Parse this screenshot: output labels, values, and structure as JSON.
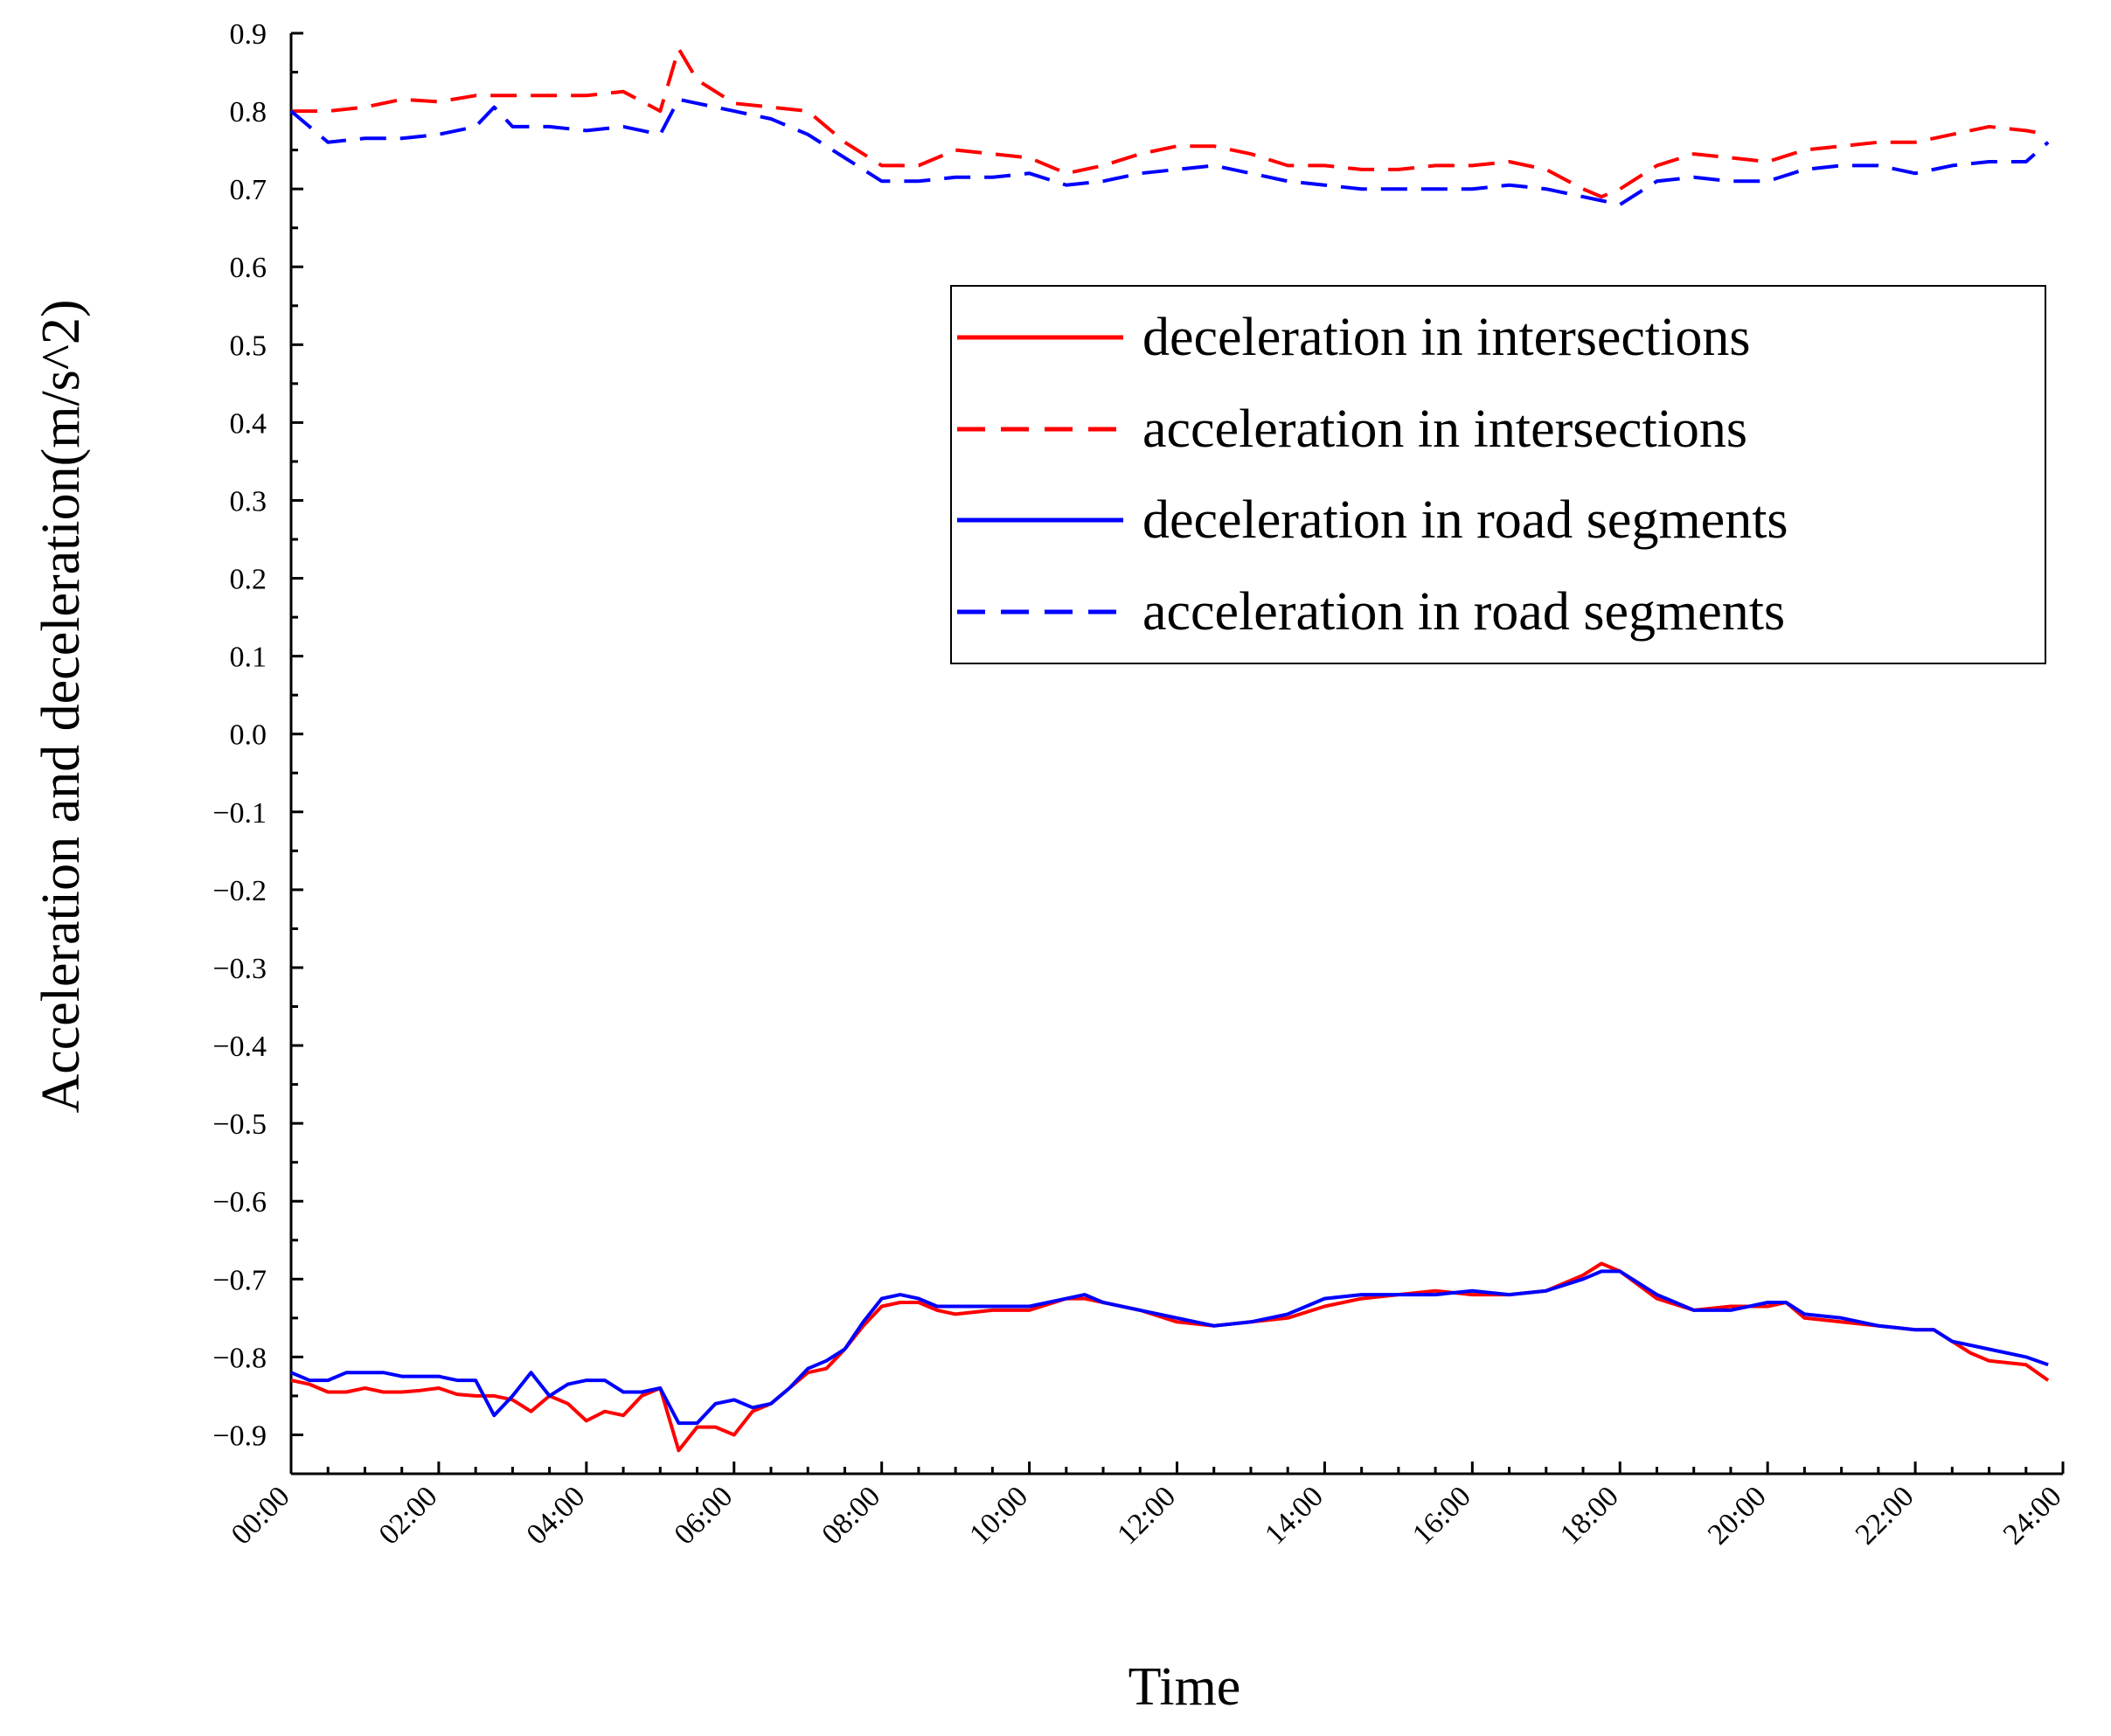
{
  "chart_data": {
    "type": "line",
    "title": "",
    "xlabel": "Time",
    "ylabel": "Acceleration and deceleration(m/s^2)",
    "xlim": [
      0,
      24
    ],
    "ylim": [
      -0.95,
      0.9
    ],
    "x_tick_labels": [
      "00:00",
      "02:00",
      "04:00",
      "06:00",
      "08:00",
      "10:00",
      "12:00",
      "14:00",
      "16:00",
      "18:00",
      "20:00",
      "22:00",
      "24:00"
    ],
    "y_ticks": [
      0.9,
      0.8,
      0.7,
      0.6,
      0.5,
      0.4,
      0.3,
      0.2,
      0.1,
      0.0,
      -0.1,
      -0.2,
      -0.3,
      -0.4,
      -0.5,
      -0.6,
      -0.7,
      -0.8,
      -0.9
    ],
    "y_tick_labels": [
      "0.9",
      "0.8",
      "0.7",
      "0.6",
      "0.5",
      "0.4",
      "0.3",
      "0.2",
      "0.1",
      "0.0",
      "−0.1",
      "−0.2",
      "−0.3",
      "−0.4",
      "−0.5",
      "−0.6",
      "−0.7",
      "−0.8",
      "−0.9"
    ],
    "legend_position": "upper-right",
    "series": [
      {
        "name": "deceleration in intersections",
        "color": "#ff0000",
        "style": "solid",
        "x": [
          0,
          0.25,
          0.5,
          0.75,
          1,
          1.25,
          1.5,
          1.75,
          2,
          2.25,
          2.5,
          2.75,
          3,
          3.25,
          3.5,
          3.75,
          4,
          4.25,
          4.5,
          4.75,
          5,
          5.25,
          5.5,
          5.75,
          6,
          6.25,
          6.5,
          6.75,
          7,
          7.25,
          7.5,
          7.75,
          8,
          8.25,
          8.5,
          8.75,
          9,
          9.5,
          10,
          10.5,
          10.75,
          11,
          11.5,
          12,
          12.5,
          13,
          13.5,
          14,
          14.5,
          15,
          15.5,
          16,
          16.5,
          17,
          17.5,
          17.75,
          18,
          18.5,
          19,
          19.5,
          20,
          20.25,
          20.5,
          21,
          21.5,
          22,
          22.25,
          22.5,
          22.75,
          23,
          23.5,
          23.8
        ],
        "y": [
          -0.83,
          -0.835,
          -0.845,
          -0.845,
          -0.84,
          -0.845,
          -0.845,
          -0.843,
          -0.84,
          -0.848,
          -0.85,
          -0.85,
          -0.855,
          -0.87,
          -0.85,
          -0.86,
          -0.882,
          -0.87,
          -0.875,
          -0.85,
          -0.84,
          -0.92,
          -0.89,
          -0.89,
          -0.9,
          -0.87,
          -0.86,
          -0.84,
          -0.82,
          -0.815,
          -0.79,
          -0.76,
          -0.735,
          -0.73,
          -0.73,
          -0.74,
          -0.745,
          -0.74,
          -0.74,
          -0.725,
          -0.725,
          -0.73,
          -0.74,
          -0.755,
          -0.76,
          -0.755,
          -0.75,
          -0.735,
          -0.725,
          -0.72,
          -0.715,
          -0.72,
          -0.72,
          -0.715,
          -0.695,
          -0.68,
          -0.69,
          -0.725,
          -0.74,
          -0.735,
          -0.735,
          -0.73,
          -0.75,
          -0.755,
          -0.76,
          -0.765,
          -0.765,
          -0.78,
          -0.795,
          -0.805,
          -0.81,
          -0.83
        ]
      },
      {
        "name": "acceleration in intersections",
        "color": "#ff0000",
        "style": "dashed",
        "x": [
          0,
          0.5,
          1,
          1.5,
          2,
          2.5,
          3,
          3.5,
          4,
          4.5,
          5,
          5.25,
          5.5,
          6,
          6.5,
          7,
          7.5,
          8,
          8.5,
          9,
          9.5,
          10,
          10.5,
          11,
          11.5,
          12,
          12.5,
          13,
          13.5,
          14,
          14.5,
          15,
          15.5,
          16,
          16.5,
          17,
          17.5,
          17.75,
          18,
          18.5,
          19,
          19.5,
          20,
          20.5,
          21,
          21.5,
          22,
          22.5,
          23,
          23.5,
          23.8
        ],
        "y": [
          0.8,
          0.8,
          0.805,
          0.815,
          0.812,
          0.82,
          0.82,
          0.82,
          0.82,
          0.825,
          0.8,
          0.88,
          0.84,
          0.81,
          0.805,
          0.8,
          0.76,
          0.73,
          0.73,
          0.75,
          0.745,
          0.74,
          0.72,
          0.73,
          0.745,
          0.755,
          0.755,
          0.745,
          0.73,
          0.73,
          0.725,
          0.725,
          0.73,
          0.73,
          0.735,
          0.725,
          0.7,
          0.69,
          0.7,
          0.73,
          0.745,
          0.74,
          0.735,
          0.75,
          0.755,
          0.76,
          0.76,
          0.77,
          0.78,
          0.775,
          0.77
        ]
      },
      {
        "name": "deceleration in road segments",
        "color": "#0000ff",
        "style": "solid",
        "x": [
          0,
          0.25,
          0.5,
          0.75,
          1,
          1.25,
          1.5,
          1.75,
          2,
          2.25,
          2.5,
          2.75,
          3,
          3.25,
          3.5,
          3.75,
          4,
          4.25,
          4.5,
          4.75,
          5,
          5.25,
          5.5,
          5.75,
          6,
          6.25,
          6.5,
          6.75,
          7,
          7.25,
          7.5,
          7.75,
          8,
          8.25,
          8.5,
          8.75,
          9,
          9.5,
          10,
          10.5,
          10.75,
          11,
          11.5,
          12,
          12.5,
          13,
          13.5,
          14,
          14.5,
          15,
          15.5,
          16,
          16.5,
          17,
          17.5,
          17.75,
          18,
          18.5,
          19,
          19.5,
          20,
          20.25,
          20.5,
          21,
          21.5,
          22,
          22.25,
          22.5,
          22.75,
          23,
          23.5,
          23.8
        ],
        "y": [
          -0.82,
          -0.83,
          -0.83,
          -0.82,
          -0.82,
          -0.82,
          -0.825,
          -0.825,
          -0.825,
          -0.83,
          -0.83,
          -0.875,
          -0.85,
          -0.82,
          -0.85,
          -0.835,
          -0.83,
          -0.83,
          -0.845,
          -0.845,
          -0.84,
          -0.885,
          -0.885,
          -0.86,
          -0.855,
          -0.865,
          -0.86,
          -0.84,
          -0.815,
          -0.805,
          -0.79,
          -0.755,
          -0.725,
          -0.72,
          -0.725,
          -0.735,
          -0.735,
          -0.735,
          -0.735,
          -0.725,
          -0.72,
          -0.73,
          -0.74,
          -0.75,
          -0.76,
          -0.755,
          -0.745,
          -0.725,
          -0.72,
          -0.72,
          -0.72,
          -0.715,
          -0.72,
          -0.715,
          -0.7,
          -0.69,
          -0.69,
          -0.72,
          -0.74,
          -0.74,
          -0.73,
          -0.73,
          -0.745,
          -0.75,
          -0.76,
          -0.765,
          -0.765,
          -0.78,
          -0.785,
          -0.79,
          -0.8,
          -0.81
        ]
      },
      {
        "name": "acceleration in road segments",
        "color": "#0000ff",
        "style": "dashed",
        "x": [
          0,
          0.5,
          1,
          1.5,
          2,
          2.5,
          2.75,
          3,
          3.5,
          4,
          4.5,
          5,
          5.25,
          5.5,
          6,
          6.5,
          7,
          7.5,
          8,
          8.5,
          9,
          9.5,
          10,
          10.5,
          11,
          11.5,
          12,
          12.5,
          13,
          13.5,
          14,
          14.5,
          15,
          15.5,
          16,
          16.5,
          17,
          17.5,
          17.75,
          18,
          18.5,
          19,
          19.5,
          20,
          20.5,
          21,
          21.5,
          22,
          22.5,
          23,
          23.5,
          23.8
        ],
        "y": [
          0.8,
          0.76,
          0.765,
          0.765,
          0.77,
          0.78,
          0.805,
          0.78,
          0.78,
          0.775,
          0.78,
          0.77,
          0.815,
          0.81,
          0.8,
          0.79,
          0.77,
          0.74,
          0.71,
          0.71,
          0.715,
          0.715,
          0.72,
          0.705,
          0.71,
          0.72,
          0.725,
          0.73,
          0.72,
          0.71,
          0.705,
          0.7,
          0.7,
          0.7,
          0.7,
          0.705,
          0.7,
          0.69,
          0.685,
          0.68,
          0.71,
          0.715,
          0.71,
          0.71,
          0.725,
          0.73,
          0.73,
          0.72,
          0.73,
          0.735,
          0.735,
          0.76
        ]
      }
    ]
  }
}
